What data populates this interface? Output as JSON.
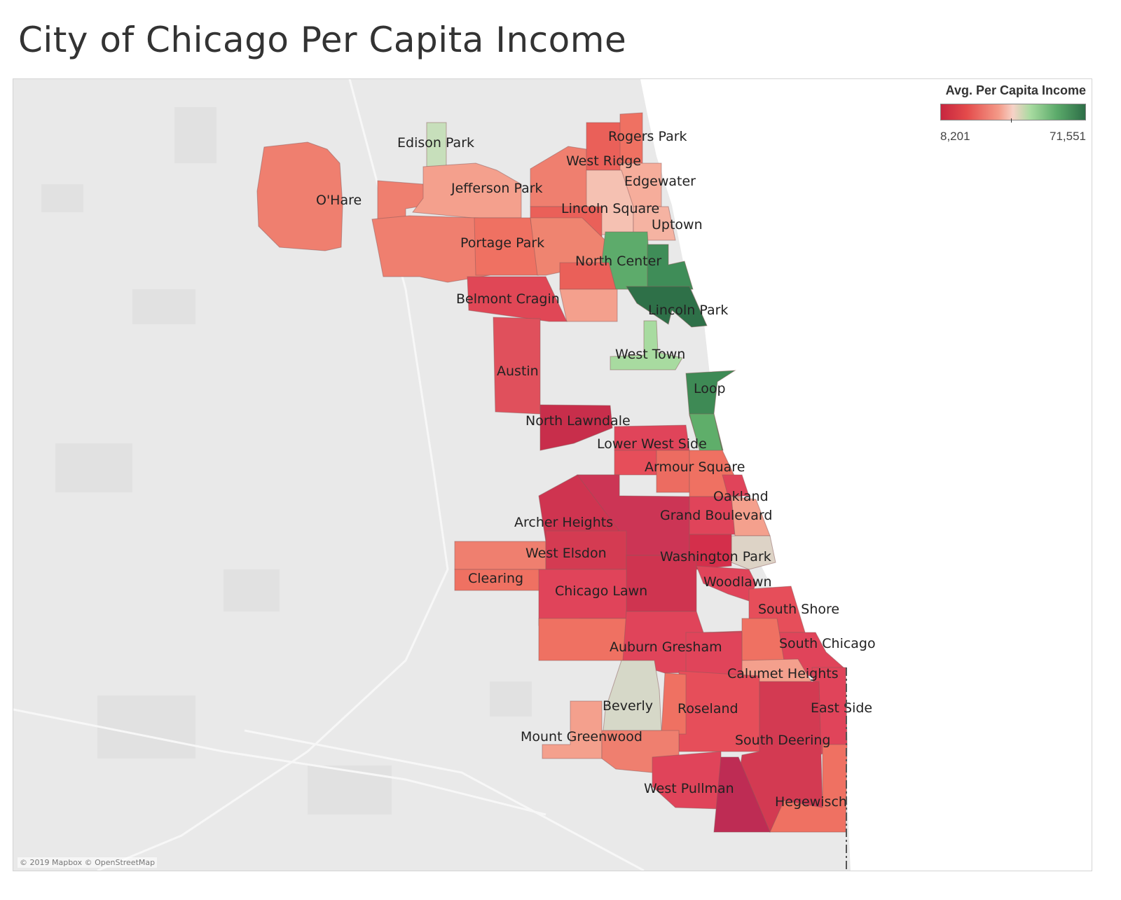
{
  "title": "City of Chicago Per Capita Income",
  "legend": {
    "title": "Avg. Per Capita Income",
    "min_label": "8,201",
    "max_label": "71,551",
    "colors": [
      "#c7263f",
      "#e44b4b",
      "#f49a88",
      "#f6d2c7",
      "#a8dba0",
      "#5cab6b",
      "#2d6e47"
    ]
  },
  "attribution": "© 2019 Mapbox © OpenStreetMap",
  "labels": {
    "edison_park": "Edison Park",
    "ohare": "O'Hare",
    "jefferson_park": "Jefferson Park",
    "rogers_park": "Rogers Park",
    "west_ridge": "West Ridge",
    "edgewater": "Edgewater",
    "lincoln_square": "Lincoln Square",
    "uptown": "Uptown",
    "portage_park": "Portage Park",
    "north_center": "North Center",
    "belmont_cragin": "Belmont Cragin",
    "lincoln_park": "Lincoln Park",
    "west_town": "West Town",
    "austin": "Austin",
    "loop": "Loop",
    "north_lawndale": "North Lawndale",
    "lower_west_side": "Lower West Side",
    "armour_square": "Armour Square",
    "oakland": "Oakland",
    "archer_heights": "Archer Heights",
    "grand_boulevard": "Grand Boulevard",
    "west_elsdon": "West Elsdon",
    "washington_park": "Washington Park",
    "clearing": "Clearing",
    "woodlawn": "Woodlawn",
    "chicago_lawn": "Chicago Lawn",
    "south_shore": "South Shore",
    "auburn_gresham": "Auburn Gresham",
    "south_chicago": "South Chicago",
    "calumet_heights": "Calumet Heights",
    "beverly": "Beverly",
    "roseland": "Roseland",
    "east_side": "East Side",
    "mount_greenwood": "Mount Greenwood",
    "south_deering": "South Deering",
    "west_pullman": "West Pullman",
    "hegewisch": "Hegewisch"
  }
}
